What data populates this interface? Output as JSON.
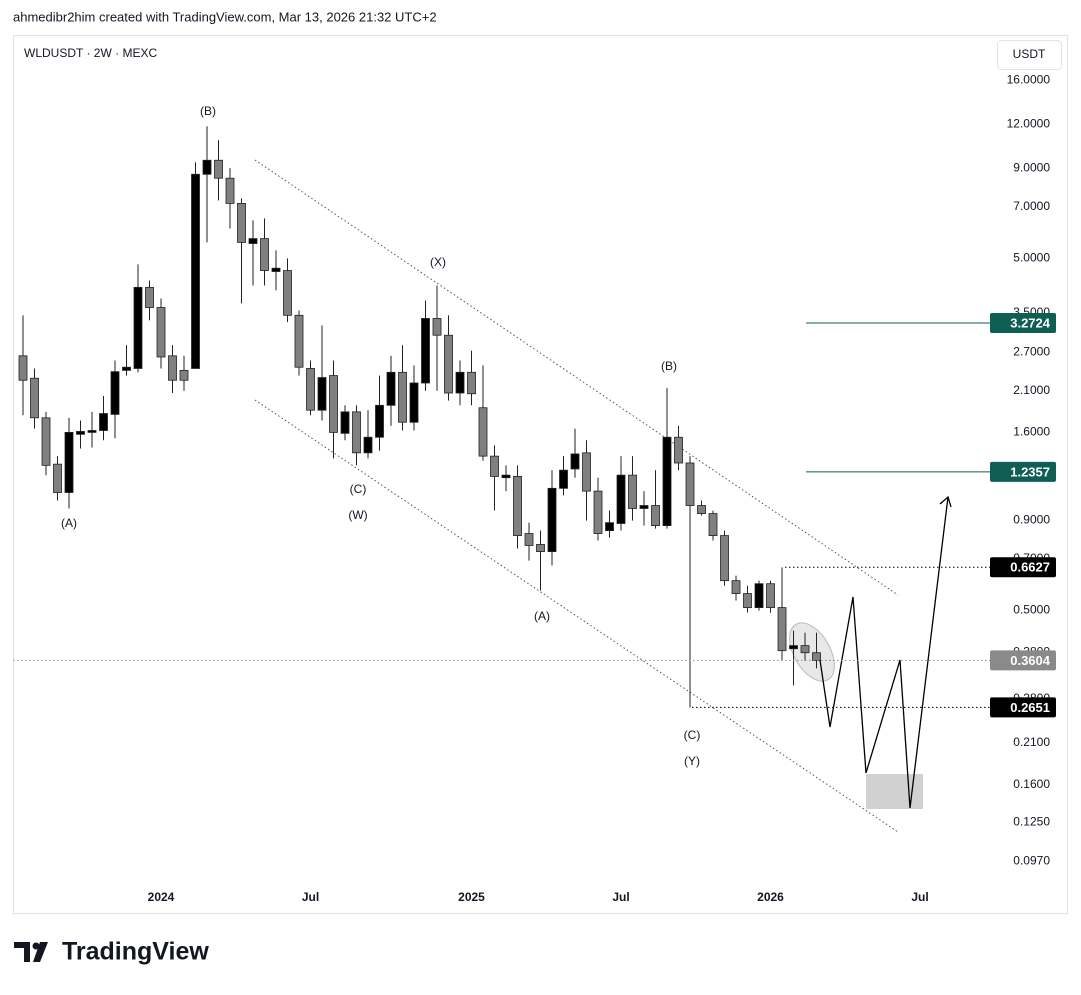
{
  "credit": "ahmedibr2him created with TradingView.com, Mar 13, 2026 21:32 UTC+2",
  "brand": "TradingView",
  "chart_data": {
    "type": "candlestick",
    "title": "WLDUSDT · 2W · MEXC",
    "currency": "USDT",
    "log_scale": true,
    "up_color": "#000000",
    "down_color": "#808080",
    "x": [
      0,
      1,
      2,
      3,
      4,
      5,
      6,
      7,
      8,
      9,
      10,
      11,
      12,
      13,
      14,
      15,
      16,
      17,
      18,
      19,
      20,
      21,
      22,
      23,
      24,
      25,
      26,
      27,
      28,
      29,
      30,
      31,
      32,
      33,
      34,
      35,
      36,
      37,
      38,
      39,
      40,
      41,
      42,
      43,
      44,
      45,
      46,
      47,
      48,
      49,
      50,
      51,
      52,
      53,
      54,
      55,
      56,
      57,
      58,
      59,
      60,
      61,
      62,
      63,
      64,
      65,
      66,
      67,
      68,
      69
    ],
    "open": [
      2.64,
      2.28,
      1.76,
      1.3,
      1.08,
      1.58,
      1.6,
      1.62,
      1.8,
      2.4,
      2.43,
      4.13,
      3.62,
      2.64,
      2.4,
      2.43,
      8.65,
      9.48,
      8.43,
      7.15,
      5.5,
      5.68,
      4.58,
      4.61,
      3.44,
      2.43,
      1.85,
      2.32,
      1.59,
      1.83,
      1.4,
      1.55,
      1.91,
      2.37,
      1.71,
      2.21,
      3.37,
      3.02,
      2.07,
      2.37,
      1.88,
      1.37,
      1.19,
      1.2,
      0.826,
      0.769,
      0.734,
      1.11,
      1.26,
      1.4,
      1.09,
      0.842,
      0.882,
      1.21,
      0.973,
      0.992,
      0.87,
      1.55,
      1.31,
      0.992,
      0.941,
      0.815,
      0.607,
      0.558,
      0.509,
      0.595,
      0.509,
      0.389,
      0.397,
      0.379
    ],
    "high": [
      3.44,
      2.43,
      1.83,
      1.37,
      1.76,
      1.73,
      1.83,
      2.03,
      2.56,
      2.83,
      4.8,
      4.32,
      3.84,
      2.83,
      2.64,
      9.36,
      11.84,
      10.8,
      9.0,
      7.39,
      6.4,
      6.48,
      5.26,
      4.99,
      3.55,
      2.56,
      3.22,
      2.56,
      1.91,
      1.91,
      1.85,
      2.32,
      2.64,
      2.83,
      2.48,
      3.79,
      4.18,
      3.44,
      2.56,
      2.73,
      2.48,
      1.47,
      1.29,
      1.29,
      0.887,
      0.842,
      1.25,
      1.37,
      1.64,
      1.52,
      1.19,
      0.96,
      1.37,
      1.37,
      1.09,
      1.25,
      2.14,
      1.67,
      1.37,
      1.025,
      0.96,
      0.842,
      0.627,
      0.587,
      0.607,
      0.607,
      0.662,
      0.438,
      0.432,
      0.432
    ],
    "low": [
      1.79,
      1.64,
      1.21,
      1.025,
      0.973,
      1.44,
      1.45,
      1.52,
      1.54,
      2.32,
      2.37,
      3.33,
      2.43,
      2.07,
      2.1,
      2.43,
      5.54,
      7.29,
      6.07,
      3.72,
      4.18,
      4.18,
      4.05,
      3.29,
      2.32,
      1.79,
      1.73,
      1.35,
      1.52,
      1.29,
      1.35,
      1.42,
      1.67,
      1.62,
      1.62,
      2.1,
      2.1,
      1.97,
      1.91,
      1.91,
      1.33,
      0.96,
      1.09,
      0.749,
      0.692,
      0.569,
      0.67,
      1.06,
      1.19,
      0.899,
      0.789,
      0.804,
      0.842,
      0.899,
      0.87,
      0.853,
      0.853,
      1.25,
      0.265,
      0.929,
      0.789,
      0.587,
      0.533,
      0.493,
      0.499,
      0.492,
      0.36,
      0.306,
      0.36,
      0.342
    ],
    "close": [
      2.25,
      1.76,
      1.29,
      1.08,
      1.6,
      1.61,
      1.62,
      1.81,
      2.38,
      2.45,
      4.13,
      3.62,
      2.62,
      2.25,
      2.25,
      8.65,
      9.48,
      8.43,
      7.15,
      5.54,
      5.68,
      4.61,
      4.68,
      3.44,
      2.45,
      1.85,
      2.29,
      1.6,
      1.83,
      1.4,
      1.55,
      1.91,
      2.37,
      1.71,
      2.21,
      3.37,
      3.02,
      2.07,
      2.37,
      2.06,
      1.37,
      1.2,
      1.21,
      0.815,
      0.764,
      0.734,
      1.11,
      1.25,
      1.39,
      1.09,
      0.826,
      0.887,
      1.21,
      0.973,
      0.992,
      0.87,
      1.55,
      1.31,
      0.992,
      0.941,
      0.815,
      0.607,
      0.558,
      0.509,
      0.595,
      0.509,
      0.384,
      0.397,
      0.379,
      0.36
    ],
    "xlim": [
      -0.87,
      84.52
    ],
    "xticks": [
      {
        "value": 12,
        "label": "2024"
      },
      {
        "value": 25,
        "label": "Jul"
      },
      {
        "value": 39,
        "label": "2025"
      },
      {
        "value": 52,
        "label": "Jul"
      },
      {
        "value": 65,
        "label": "2026"
      },
      {
        "value": 78,
        "label": "Jul"
      }
    ],
    "ylim": [
      0.083,
      21.5
    ],
    "yticks": [
      {
        "value": 16,
        "label": "16.0000"
      },
      {
        "value": 12,
        "label": "12.0000"
      },
      {
        "value": 9,
        "label": "9.0000"
      },
      {
        "value": 7,
        "label": "7.0000"
      },
      {
        "value": 5,
        "label": "5.0000"
      },
      {
        "value": 3.5,
        "label": "3.5000"
      },
      {
        "value": 2.7,
        "label": "2.7000"
      },
      {
        "value": 2.1,
        "label": "2.1000"
      },
      {
        "value": 1.6,
        "label": "1.6000"
      },
      {
        "value": 0.9,
        "label": "0.9000"
      },
      {
        "value": 0.7,
        "label": "0.7000"
      },
      {
        "value": 0.5,
        "label": "0.5000"
      },
      {
        "value": 0.38,
        "label": "0.3800"
      },
      {
        "value": 0.28,
        "label": "0.2800"
      },
      {
        "value": 0.21,
        "label": "0.2100"
      },
      {
        "value": 0.16,
        "label": "0.1600"
      },
      {
        "value": 0.125,
        "label": "0.1250"
      },
      {
        "value": 0.097,
        "label": "0.0970"
      }
    ],
    "grid": false,
    "price_lines": [
      {
        "value": 3.2724,
        "color": "#0f5e54",
        "style": "solid"
      },
      {
        "value": 1.2357,
        "color": "#0f5e54",
        "style": "solid"
      },
      {
        "value": 0.6627,
        "color": "#000000",
        "style": "dotted"
      },
      {
        "value": 0.3604,
        "color": "#8a8a8a",
        "style": "dotted"
      },
      {
        "value": 0.2651,
        "color": "#000000",
        "style": "dotted"
      }
    ],
    "annotations": [
      "(B)",
      "(A)",
      "(X)",
      "(C)",
      "(W)",
      "(A)",
      "(B)",
      "(C)",
      "(Y)"
    ]
  }
}
